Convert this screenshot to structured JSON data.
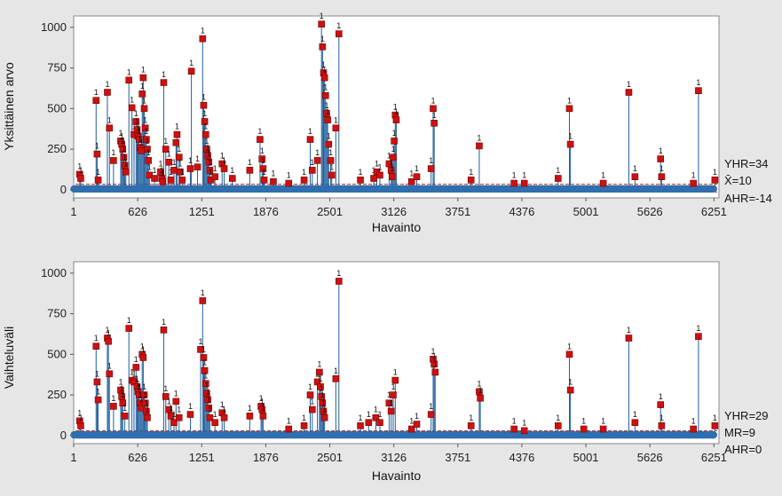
{
  "chart_data": [
    {
      "type": "scatter",
      "title": "",
      "xlabel": "Havainto",
      "ylabel": "Yksittäinen arvo",
      "xlim": [
        1,
        6300
      ],
      "ylim": [
        -50,
        1070
      ],
      "x_ticks": [
        "1",
        "626",
        "1251",
        "1876",
        "2501",
        "3126",
        "3751",
        "4376",
        "5001",
        "5626",
        "6251"
      ],
      "y_ticks": [
        "0",
        "250",
        "500",
        "750",
        "1000"
      ],
      "baseline_value": 5,
      "limit_labels": [
        "YHR=34",
        "X̄=10",
        "AHR=-14"
      ],
      "limit_values": [
        34,
        10,
        -14
      ],
      "out_of_control_label": "1",
      "out_of_control": [
        [
          60,
          95
        ],
        [
          70,
          70
        ],
        [
          220,
          550
        ],
        [
          230,
          220
        ],
        [
          240,
          60
        ],
        [
          330,
          600
        ],
        [
          350,
          380
        ],
        [
          390,
          180
        ],
        [
          460,
          300
        ],
        [
          470,
          280
        ],
        [
          480,
          250
        ],
        [
          490,
          200
        ],
        [
          500,
          150
        ],
        [
          510,
          110
        ],
        [
          540,
          675
        ],
        [
          570,
          505
        ],
        [
          590,
          340
        ],
        [
          610,
          420
        ],
        [
          620,
          370
        ],
        [
          630,
          330
        ],
        [
          640,
          310
        ],
        [
          650,
          260
        ],
        [
          660,
          240
        ],
        [
          670,
          590
        ],
        [
          680,
          690
        ],
        [
          690,
          500
        ],
        [
          700,
          380
        ],
        [
          710,
          310
        ],
        [
          720,
          250
        ],
        [
          730,
          180
        ],
        [
          740,
          90
        ],
        [
          790,
          70
        ],
        [
          850,
          110
        ],
        [
          860,
          70
        ],
        [
          870,
          50
        ],
        [
          880,
          660
        ],
        [
          900,
          250
        ],
        [
          930,
          170
        ],
        [
          950,
          60
        ],
        [
          980,
          120
        ],
        [
          1000,
          290
        ],
        [
          1010,
          340
        ],
        [
          1030,
          200
        ],
        [
          1040,
          110
        ],
        [
          1060,
          60
        ],
        [
          1140,
          130
        ],
        [
          1150,
          730
        ],
        [
          1210,
          140
        ],
        [
          1260,
          930
        ],
        [
          1270,
          520
        ],
        [
          1280,
          420
        ],
        [
          1290,
          340
        ],
        [
          1300,
          250
        ],
        [
          1310,
          210
        ],
        [
          1320,
          170
        ],
        [
          1330,
          120
        ],
        [
          1340,
          60
        ],
        [
          1380,
          80
        ],
        [
          1450,
          160
        ],
        [
          1470,
          130
        ],
        [
          1550,
          70
        ],
        [
          1720,
          120
        ],
        [
          1820,
          310
        ],
        [
          1840,
          190
        ],
        [
          1850,
          130
        ],
        [
          1860,
          60
        ],
        [
          1950,
          50
        ],
        [
          2100,
          40
        ],
        [
          2250,
          60
        ],
        [
          2310,
          310
        ],
        [
          2330,
          120
        ],
        [
          2380,
          180
        ],
        [
          2420,
          1020
        ],
        [
          2430,
          880
        ],
        [
          2440,
          720
        ],
        [
          2450,
          690
        ],
        [
          2460,
          580
        ],
        [
          2470,
          470
        ],
        [
          2480,
          430
        ],
        [
          2490,
          280
        ],
        [
          2510,
          180
        ],
        [
          2520,
          90
        ],
        [
          2560,
          380
        ],
        [
          2590,
          960
        ],
        [
          2800,
          60
        ],
        [
          2930,
          70
        ],
        [
          2960,
          110
        ],
        [
          2990,
          90
        ],
        [
          3080,
          160
        ],
        [
          3100,
          120
        ],
        [
          3110,
          80
        ],
        [
          3120,
          200
        ],
        [
          3130,
          300
        ],
        [
          3140,
          460
        ],
        [
          3150,
          430
        ],
        [
          3300,
          50
        ],
        [
          3350,
          80
        ],
        [
          3490,
          130
        ],
        [
          3510,
          500
        ],
        [
          3520,
          410
        ],
        [
          3880,
          60
        ],
        [
          3960,
          270
        ],
        [
          4300,
          40
        ],
        [
          4400,
          40
        ],
        [
          4730,
          70
        ],
        [
          4840,
          500
        ],
        [
          4850,
          280
        ],
        [
          5170,
          40
        ],
        [
          5420,
          600
        ],
        [
          5480,
          80
        ],
        [
          5730,
          190
        ],
        [
          5740,
          80
        ],
        [
          6050,
          40
        ],
        [
          6100,
          610
        ],
        [
          6260,
          60
        ]
      ]
    },
    {
      "type": "scatter",
      "title": "",
      "xlabel": "Havainto",
      "ylabel": "Vaihteluväli",
      "xlim": [
        1,
        6300
      ],
      "ylim": [
        -50,
        1070
      ],
      "x_ticks": [
        "1",
        "626",
        "1251",
        "1876",
        "2501",
        "3126",
        "3751",
        "4376",
        "5001",
        "5626",
        "6251"
      ],
      "y_ticks": [
        "0",
        "250",
        "500",
        "750",
        "1000"
      ],
      "baseline_value": 4,
      "limit_labels": [
        "YHR=29",
        "MR=9",
        "AHR=0"
      ],
      "limit_values": [
        29,
        9,
        0
      ],
      "out_of_control_label": "1",
      "out_of_control": [
        [
          60,
          90
        ],
        [
          70,
          60
        ],
        [
          220,
          550
        ],
        [
          230,
          330
        ],
        [
          240,
          220
        ],
        [
          330,
          600
        ],
        [
          340,
          580
        ],
        [
          350,
          380
        ],
        [
          390,
          180
        ],
        [
          460,
          280
        ],
        [
          470,
          240
        ],
        [
          480,
          200
        ],
        [
          500,
          120
        ],
        [
          540,
          660
        ],
        [
          570,
          340
        ],
        [
          590,
          330
        ],
        [
          610,
          420
        ],
        [
          620,
          300
        ],
        [
          630,
          270
        ],
        [
          640,
          250
        ],
        [
          650,
          200
        ],
        [
          660,
          170
        ],
        [
          670,
          500
        ],
        [
          680,
          480
        ],
        [
          690,
          250
        ],
        [
          700,
          200
        ],
        [
          710,
          150
        ],
        [
          720,
          110
        ],
        [
          880,
          650
        ],
        [
          900,
          240
        ],
        [
          930,
          160
        ],
        [
          950,
          120
        ],
        [
          980,
          80
        ],
        [
          1000,
          210
        ],
        [
          1030,
          110
        ],
        [
          1140,
          130
        ],
        [
          1240,
          530
        ],
        [
          1260,
          830
        ],
        [
          1270,
          480
        ],
        [
          1280,
          400
        ],
        [
          1290,
          320
        ],
        [
          1300,
          260
        ],
        [
          1310,
          220
        ],
        [
          1320,
          170
        ],
        [
          1330,
          110
        ],
        [
          1380,
          80
        ],
        [
          1450,
          140
        ],
        [
          1470,
          110
        ],
        [
          1720,
          120
        ],
        [
          1830,
          180
        ],
        [
          1840,
          160
        ],
        [
          1850,
          120
        ],
        [
          2100,
          40
        ],
        [
          2250,
          60
        ],
        [
          2310,
          250
        ],
        [
          2330,
          160
        ],
        [
          2380,
          330
        ],
        [
          2400,
          390
        ],
        [
          2410,
          300
        ],
        [
          2420,
          240
        ],
        [
          2430,
          200
        ],
        [
          2440,
          150
        ],
        [
          2450,
          110
        ],
        [
          2560,
          350
        ],
        [
          2590,
          950
        ],
        [
          2800,
          60
        ],
        [
          2880,
          80
        ],
        [
          2950,
          110
        ],
        [
          2990,
          80
        ],
        [
          3080,
          200
        ],
        [
          3100,
          150
        ],
        [
          3120,
          250
        ],
        [
          3140,
          340
        ],
        [
          3300,
          40
        ],
        [
          3350,
          70
        ],
        [
          3490,
          130
        ],
        [
          3510,
          470
        ],
        [
          3520,
          440
        ],
        [
          3530,
          390
        ],
        [
          3880,
          60
        ],
        [
          3960,
          270
        ],
        [
          3970,
          230
        ],
        [
          4300,
          40
        ],
        [
          4400,
          30
        ],
        [
          4730,
          60
        ],
        [
          4840,
          500
        ],
        [
          4850,
          280
        ],
        [
          4980,
          40
        ],
        [
          5170,
          40
        ],
        [
          5420,
          600
        ],
        [
          5480,
          80
        ],
        [
          5730,
          190
        ],
        [
          5740,
          60
        ],
        [
          6050,
          40
        ],
        [
          6100,
          610
        ],
        [
          6260,
          60
        ]
      ]
    }
  ]
}
